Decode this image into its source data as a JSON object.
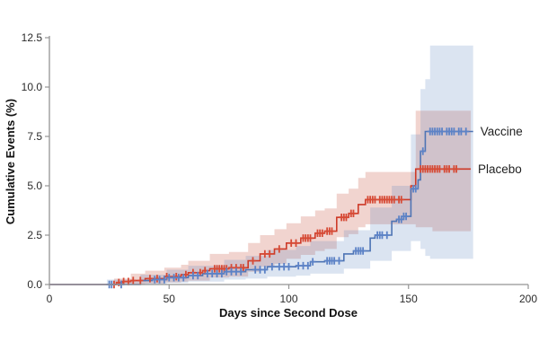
{
  "chart_data": {
    "type": "line",
    "subtype": "step-cumulative-incidence",
    "title": "",
    "xlabel": "Days since Second Dose",
    "ylabel": "Cumulative Events (%)",
    "xlim": [
      0,
      200
    ],
    "ylim": [
      0,
      12.5
    ],
    "x_ticks": [
      0,
      50,
      100,
      150,
      200
    ],
    "y_tick_labels": [
      "0.0",
      "2.5",
      "5.0",
      "7.5",
      "10.0",
      "12.5"
    ],
    "y_tick_values": [
      0,
      2.5,
      5,
      7.5,
      10,
      12.5
    ],
    "grid": false,
    "legend_position": "right-of-curve-end",
    "axis_color": "#949494",
    "tick_label_color": "#2b2b2b",
    "series": [
      {
        "name": "Vaccine",
        "color": "#4e74b4",
        "censor_color": "#5c82c6",
        "band_color": "rgba(93,130,193,0.22)",
        "points": [
          [
            0,
            0
          ],
          [
            24,
            0
          ],
          [
            38,
            0.2
          ],
          [
            43,
            0.25
          ],
          [
            49,
            0.35
          ],
          [
            58,
            0.45
          ],
          [
            64,
            0.55
          ],
          [
            73,
            0.65
          ],
          [
            82,
            0.75
          ],
          [
            91,
            0.9
          ],
          [
            103,
            0.95
          ],
          [
            109,
            1.15
          ],
          [
            115,
            1.2
          ],
          [
            123,
            1.55
          ],
          [
            127,
            1.7
          ],
          [
            134,
            2.35
          ],
          [
            136,
            2.5
          ],
          [
            143,
            3.2
          ],
          [
            145,
            3.3
          ],
          [
            148,
            3.45
          ],
          [
            151,
            4.85
          ],
          [
            154,
            5.3
          ],
          [
            155,
            6.75
          ],
          [
            157,
            7.75
          ],
          [
            177,
            7.75
          ]
        ],
        "censor_days": [
          25,
          26,
          30,
          44,
          46,
          48,
          50,
          52,
          54,
          56,
          60,
          62,
          66,
          68,
          70,
          72,
          74,
          76,
          78,
          80,
          86,
          88,
          90,
          93,
          96,
          98,
          100,
          104,
          106,
          108,
          110,
          116,
          117,
          118,
          119,
          121,
          128,
          129,
          130,
          131,
          137,
          138,
          139,
          141,
          146,
          147,
          148,
          149,
          152,
          153,
          156,
          159,
          160,
          161,
          162,
          163,
          164,
          166,
          167,
          168,
          169,
          171,
          172,
          174
        ],
        "band": [
          [
            0,
            0,
            0
          ],
          [
            24,
            0,
            0.25
          ],
          [
            38,
            0.02,
            0.5
          ],
          [
            49,
            0.08,
            0.75
          ],
          [
            58,
            0.15,
            0.95
          ],
          [
            73,
            0.25,
            1.25
          ],
          [
            82,
            0.3,
            1.45
          ],
          [
            91,
            0.4,
            1.75
          ],
          [
            103,
            0.45,
            1.95
          ],
          [
            109,
            0.55,
            2.2
          ],
          [
            123,
            0.8,
            2.75
          ],
          [
            134,
            1.2,
            3.9
          ],
          [
            143,
            1.7,
            5.0
          ],
          [
            151,
            2.2,
            7.6
          ],
          [
            155,
            1.8,
            9.9
          ],
          [
            157,
            1.45,
            10.4
          ],
          [
            159,
            1.3,
            12.1
          ],
          [
            177,
            1.3,
            12.1
          ]
        ]
      },
      {
        "name": "Placebo",
        "color": "#cd3a28",
        "censor_color": "#d64a35",
        "band_color": "rgba(200,85,65,0.25)",
        "points": [
          [
            0,
            0
          ],
          [
            28,
            0.1
          ],
          [
            31,
            0.15
          ],
          [
            34,
            0.2
          ],
          [
            40,
            0.3
          ],
          [
            48,
            0.4
          ],
          [
            55,
            0.5
          ],
          [
            58,
            0.6
          ],
          [
            64,
            0.7
          ],
          [
            67,
            0.8
          ],
          [
            75,
            0.85
          ],
          [
            83,
            1.2
          ],
          [
            88,
            1.55
          ],
          [
            94,
            1.8
          ],
          [
            99,
            2.1
          ],
          [
            105,
            2.35
          ],
          [
            111,
            2.6
          ],
          [
            115,
            2.7
          ],
          [
            120,
            3.4
          ],
          [
            125,
            3.6
          ],
          [
            129,
            4.05
          ],
          [
            132,
            4.3
          ],
          [
            150,
            4.3
          ],
          [
            151,
            5.0
          ],
          [
            153,
            5.85
          ],
          [
            176,
            5.85
          ]
        ],
        "censor_days": [
          27,
          29,
          31,
          33,
          35,
          38,
          42,
          45,
          49,
          53,
          57,
          60,
          63,
          65,
          69,
          70,
          71,
          72,
          73,
          74,
          76,
          78,
          80,
          81,
          85,
          90,
          92,
          96,
          101,
          103,
          106,
          107,
          108,
          109,
          112,
          113,
          114,
          116,
          117,
          118,
          122,
          123,
          124,
          126,
          127,
          133,
          134,
          135,
          136,
          138,
          139,
          140,
          141,
          142,
          143,
          144,
          146,
          147,
          155,
          156,
          157,
          158,
          159,
          160,
          161,
          162,
          163,
          165,
          166,
          167,
          169,
          170
        ],
        "band": [
          [
            0,
            0,
            0
          ],
          [
            27,
            0,
            0.3
          ],
          [
            34,
            0.02,
            0.55
          ],
          [
            40,
            0.05,
            0.7
          ],
          [
            48,
            0.1,
            0.85
          ],
          [
            55,
            0.15,
            1.0
          ],
          [
            58,
            0.2,
            1.2
          ],
          [
            67,
            0.35,
            1.55
          ],
          [
            75,
            0.4,
            1.65
          ],
          [
            83,
            0.65,
            2.1
          ],
          [
            88,
            0.9,
            2.5
          ],
          [
            94,
            1.05,
            2.8
          ],
          [
            99,
            1.3,
            3.1
          ],
          [
            105,
            1.5,
            3.45
          ],
          [
            111,
            1.7,
            3.75
          ],
          [
            115,
            1.8,
            3.85
          ],
          [
            120,
            2.4,
            4.6
          ],
          [
            125,
            2.55,
            4.85
          ],
          [
            129,
            2.9,
            5.4
          ],
          [
            132,
            3.05,
            5.7
          ],
          [
            150,
            3.05,
            5.7
          ],
          [
            153,
            2.9,
            8.8
          ],
          [
            160,
            2.7,
            8.8
          ],
          [
            176,
            2.7,
            8.8
          ]
        ]
      }
    ]
  }
}
